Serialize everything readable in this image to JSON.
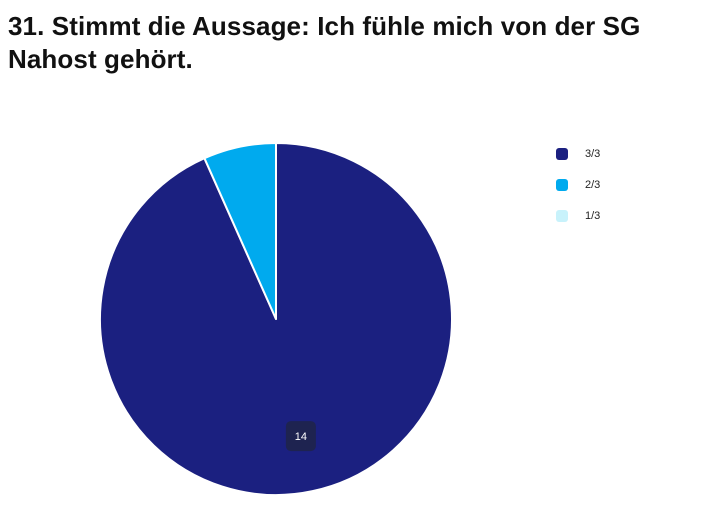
{
  "title": "31. Stimmt die Aussage: Ich fühle mich von der SG Nahost gehört.",
  "chart_data": {
    "type": "pie",
    "title": "31. Stimmt die Aussage: Ich fühle mich von der SG Nahost gehört.",
    "categories": [
      "3/3",
      "2/3",
      "1/3"
    ],
    "values": [
      14,
      1,
      0
    ],
    "colors": [
      "#1b2080",
      "#00aaee",
      "#c8f2fb"
    ],
    "data_labels": [
      "14",
      "",
      ""
    ],
    "legend_position": "right"
  }
}
